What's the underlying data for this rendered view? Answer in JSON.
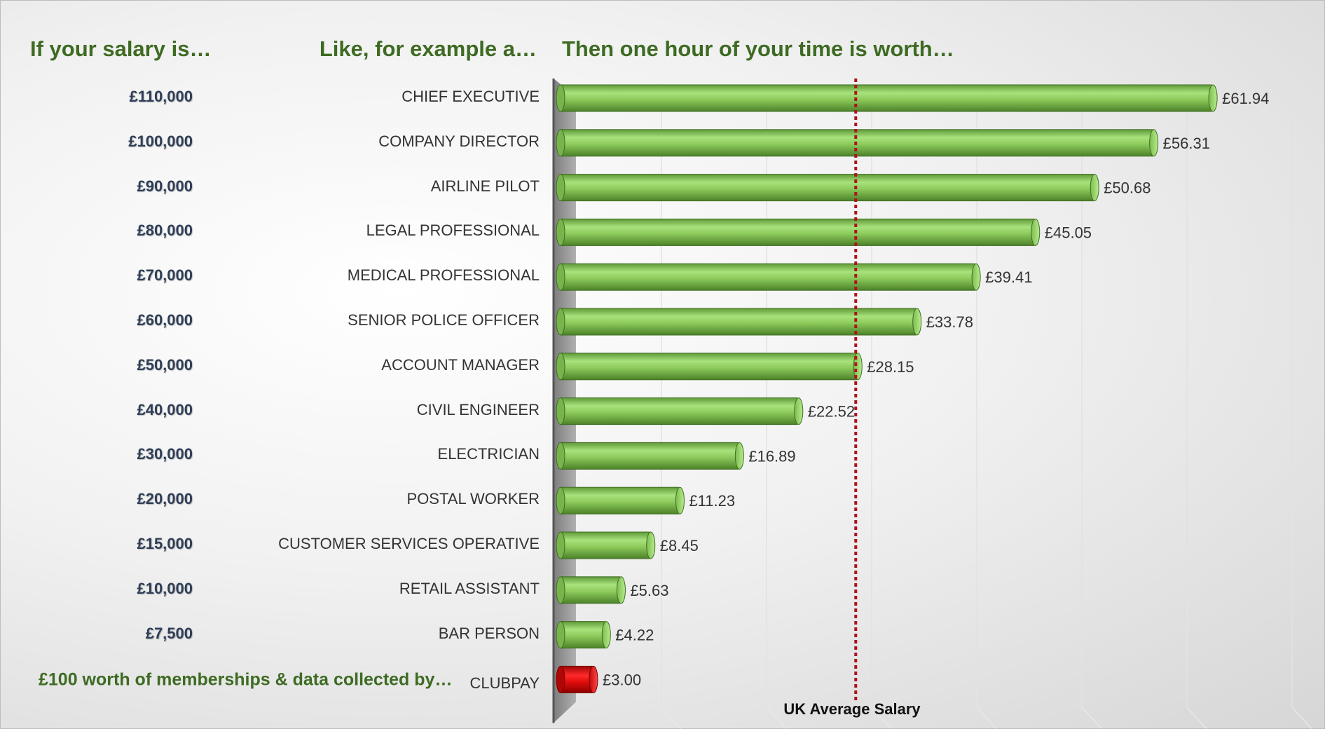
{
  "headers": {
    "salary": "If your salary is…",
    "example": "Like, for example a…",
    "worth": "Then one hour of your time is worth…"
  },
  "footer_label": "£100 worth of memberships & data collected by…",
  "reference_line": {
    "label": "UK Average Salary",
    "value": 28.15,
    "color": "#b0121b"
  },
  "colors": {
    "bar": "#8dcf5d",
    "bar_dark": "#4f8a2c",
    "highlight_bar": "#e30d0d",
    "header_text": "#3e6b23",
    "axis_wall": "#9a9a9a"
  },
  "chart_data": {
    "type": "bar",
    "orientation": "horizontal",
    "xlim": [
      0,
      70
    ],
    "grid": true,
    "rows": [
      {
        "salary": "£110,000",
        "job": "CHIEF EXECUTIVE",
        "value": 61.94,
        "label": "£61.94",
        "highlight": false
      },
      {
        "salary": "£100,000",
        "job": "COMPANY DIRECTOR",
        "value": 56.31,
        "label": "£56.31",
        "highlight": false
      },
      {
        "salary": "£90,000",
        "job": "AIRLINE PILOT",
        "value": 50.68,
        "label": "£50.68",
        "highlight": false
      },
      {
        "salary": "£80,000",
        "job": "LEGAL PROFESSIONAL",
        "value": 45.05,
        "label": "£45.05",
        "highlight": false
      },
      {
        "salary": "£70,000",
        "job": "MEDICAL PROFESSIONAL",
        "value": 39.41,
        "label": "£39.41",
        "highlight": false
      },
      {
        "salary": "£60,000",
        "job": "SENIOR POLICE OFFICER",
        "value": 33.78,
        "label": "£33.78",
        "highlight": false
      },
      {
        "salary": "£50,000",
        "job": "ACCOUNT MANAGER",
        "value": 28.15,
        "label": "£28.15",
        "highlight": false
      },
      {
        "salary": "£40,000",
        "job": "CIVIL ENGINEER",
        "value": 22.52,
        "label": "£22.52",
        "highlight": false
      },
      {
        "salary": "£30,000",
        "job": "ELECTRICIAN",
        "value": 16.89,
        "label": "£16.89",
        "highlight": false
      },
      {
        "salary": "£20,000",
        "job": "POSTAL WORKER",
        "value": 11.23,
        "label": "£11.23",
        "highlight": false
      },
      {
        "salary": "£15,000",
        "job": "CUSTOMER SERVICES OPERATIVE",
        "value": 8.45,
        "label": "£8.45",
        "highlight": false
      },
      {
        "salary": "£10,000",
        "job": "RETAIL ASSISTANT",
        "value": 5.63,
        "label": "£5.63",
        "highlight": false
      },
      {
        "salary": "£7,500",
        "job": "BAR PERSON",
        "value": 4.22,
        "label": "£4.22",
        "highlight": false
      },
      {
        "salary": "",
        "job": "CLUBPAY",
        "value": 3.0,
        "label": "£3.00",
        "highlight": true
      }
    ]
  }
}
